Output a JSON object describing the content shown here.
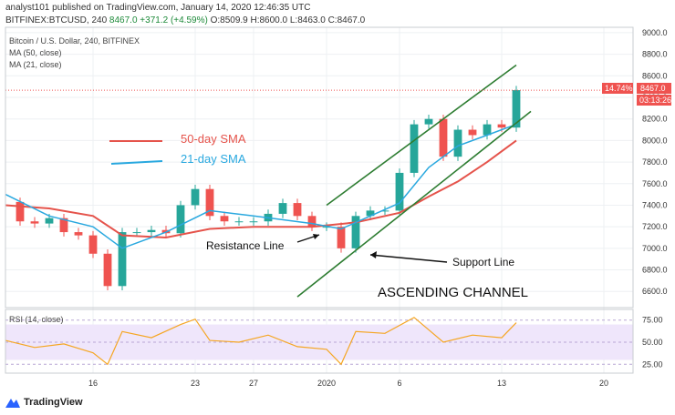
{
  "header": {
    "line1": "analyst101 published on TradingView.com, January 14, 2020 12:46:35 UTC",
    "symbol": "BITFINEX:BTCUSD, 240",
    "last": "8467.0",
    "change": "+371.2 (+4.59%)",
    "ohlc": "O:8509.9 H:8600.0 L:8463.0 C:8467.0"
  },
  "legend": {
    "title": "Bitcoin / U.S. Dollar, 240, BITFINEX",
    "ma50": "MA (50, close)",
    "ma21": "MA (21, close)"
  },
  "annotations": {
    "sma50": "50-day SMA",
    "sma21": "21-day SMA",
    "resistance": "Resistance Line",
    "support": "Support Line",
    "channel": "ASCENDING CHANNEL"
  },
  "price_tag": {
    "pct": "14.74%",
    "price": "8467.0",
    "countdown": "03:13:26"
  },
  "rsi": {
    "label": "RSI (14, close)",
    "ticks": [
      "75.00",
      "50.00",
      "25.00"
    ]
  },
  "footer": {
    "brand": "TradingView"
  },
  "colors": {
    "up": "#26a69a",
    "down": "#ef5350",
    "ma50": "#e5534b",
    "ma21": "#29a8df",
    "channel": "#2e7d32",
    "rsi": "#f5a623",
    "rsi_band": "#efe6fb",
    "tag": "#ef5350"
  },
  "chart_data": {
    "type": "line",
    "title": "Bitcoin / U.S. Dollar, 240, BITFINEX",
    "y_ticks": [
      "9000.0",
      "8800.0",
      "8600.0",
      "8400.0",
      "8200.0",
      "8000.0",
      "7800.0",
      "7600.0",
      "7400.0",
      "7200.0",
      "7000.0",
      "6800.0",
      "6600.0"
    ],
    "ylim": [
      6450,
      9050
    ],
    "x_ticks": [
      "16",
      "23",
      "27",
      "2020",
      "6",
      "13",
      "20"
    ],
    "x_tick_dates": [
      "2019-12-16",
      "2019-12-23",
      "2019-12-27",
      "2020-01-01",
      "2020-01-06",
      "2020-01-13",
      "2020-01-20"
    ],
    "xlim": [
      "2019-12-10",
      "2020-01-22"
    ],
    "close_series": [
      [
        "2019-12-10",
        7430
      ],
      [
        "2019-12-11",
        7250
      ],
      [
        "2019-12-12",
        7230
      ],
      [
        "2019-12-13",
        7280
      ],
      [
        "2019-12-14",
        7150
      ],
      [
        "2019-12-15",
        7120
      ],
      [
        "2019-12-16",
        6950
      ],
      [
        "2019-12-17",
        6650
      ],
      [
        "2019-12-18",
        7150
      ],
      [
        "2019-12-19",
        7150
      ],
      [
        "2019-12-20",
        7170
      ],
      [
        "2019-12-21",
        7140
      ],
      [
        "2019-12-22",
        7400
      ],
      [
        "2019-12-23",
        7550
      ],
      [
        "2019-12-24",
        7300
      ],
      [
        "2019-12-25",
        7250
      ],
      [
        "2019-12-26",
        7250
      ],
      [
        "2019-12-27",
        7250
      ],
      [
        "2019-12-28",
        7320
      ],
      [
        "2019-12-29",
        7420
      ],
      [
        "2019-12-30",
        7300
      ],
      [
        "2019-12-31",
        7200
      ],
      [
        "2020-01-01",
        7200
      ],
      [
        "2020-01-02",
        7000
      ],
      [
        "2020-01-03",
        7300
      ],
      [
        "2020-01-04",
        7350
      ],
      [
        "2020-01-05",
        7350
      ],
      [
        "2020-01-06",
        7700
      ],
      [
        "2020-01-07",
        8150
      ],
      [
        "2020-01-08",
        8200
      ],
      [
        "2020-01-09",
        7850
      ],
      [
        "2020-01-10",
        8100
      ],
      [
        "2020-01-11",
        8050
      ],
      [
        "2020-01-12",
        8150
      ],
      [
        "2020-01-13",
        8120
      ],
      [
        "2020-01-14",
        8467
      ]
    ],
    "ma50": [
      [
        "2019-12-10",
        7400
      ],
      [
        "2019-12-13",
        7370
      ],
      [
        "2019-12-16",
        7300
      ],
      [
        "2019-12-18",
        7120
      ],
      [
        "2019-12-21",
        7100
      ],
      [
        "2019-12-24",
        7180
      ],
      [
        "2019-12-27",
        7200
      ],
      [
        "2019-12-31",
        7200
      ],
      [
        "2020-01-03",
        7240
      ],
      [
        "2020-01-06",
        7330
      ],
      [
        "2020-01-08",
        7480
      ],
      [
        "2020-01-10",
        7620
      ],
      [
        "2020-01-12",
        7800
      ],
      [
        "2020-01-14",
        8000
      ]
    ],
    "ma21": [
      [
        "2019-12-10",
        7500
      ],
      [
        "2019-12-13",
        7300
      ],
      [
        "2019-12-16",
        7200
      ],
      [
        "2019-12-18",
        7000
      ],
      [
        "2019-12-21",
        7150
      ],
      [
        "2019-12-24",
        7350
      ],
      [
        "2019-12-27",
        7300
      ],
      [
        "2019-12-31",
        7230
      ],
      [
        "2020-01-02",
        7180
      ],
      [
        "2020-01-04",
        7300
      ],
      [
        "2020-01-06",
        7420
      ],
      [
        "2020-01-08",
        7750
      ],
      [
        "2020-01-10",
        7950
      ],
      [
        "2020-01-12",
        8050
      ],
      [
        "2020-01-14",
        8150
      ]
    ],
    "channel_upper": [
      [
        "2020-01-01",
        7400
      ],
      [
        "2020-01-14",
        8700
      ]
    ],
    "channel_lower": [
      [
        "2019-12-30",
        6550
      ],
      [
        "2020-01-15",
        8270
      ]
    ],
    "rsi_ylim": [
      15,
      85
    ],
    "rsi_series": [
      [
        "2019-12-10",
        52
      ],
      [
        "2019-12-12",
        44
      ],
      [
        "2019-12-14",
        48
      ],
      [
        "2019-12-16",
        38
      ],
      [
        "2019-12-17",
        25
      ],
      [
        "2019-12-18",
        62
      ],
      [
        "2019-12-20",
        55
      ],
      [
        "2019-12-22",
        70
      ],
      [
        "2019-12-23",
        76
      ],
      [
        "2019-12-24",
        52
      ],
      [
        "2019-12-26",
        50
      ],
      [
        "2019-12-28",
        58
      ],
      [
        "2019-12-30",
        45
      ],
      [
        "2020-01-01",
        42
      ],
      [
        "2020-01-02",
        25
      ],
      [
        "2020-01-03",
        62
      ],
      [
        "2020-01-05",
        60
      ],
      [
        "2020-01-07",
        78
      ],
      [
        "2020-01-09",
        50
      ],
      [
        "2020-01-11",
        58
      ],
      [
        "2020-01-13",
        55
      ],
      [
        "2020-01-14",
        72
      ]
    ]
  }
}
